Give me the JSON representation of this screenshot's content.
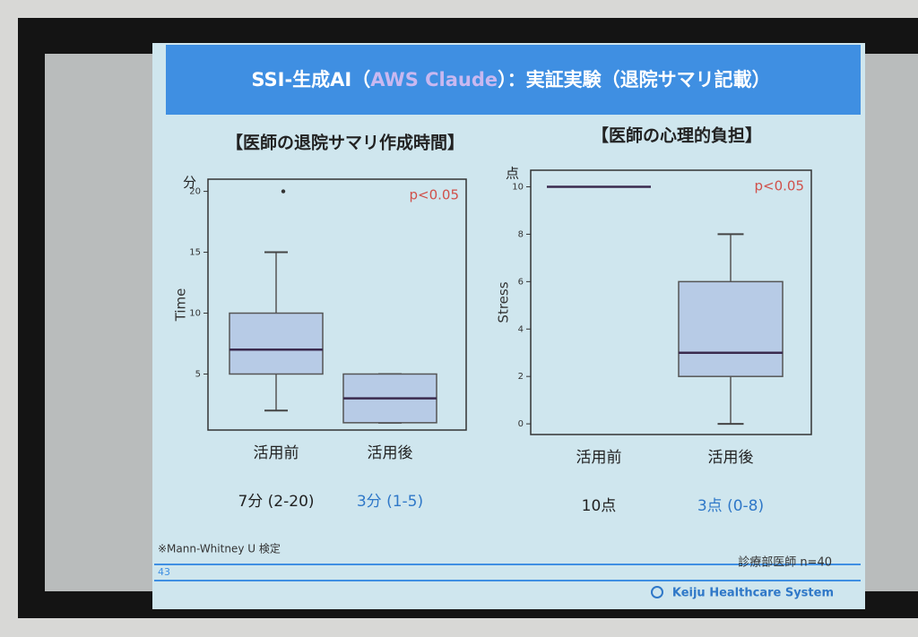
{
  "slide": {
    "title": [
      {
        "text": "SSI-生成AI（",
        "color": "#ffffff"
      },
      {
        "text": "AWS Claude",
        "color": "#c9b8f0"
      },
      {
        "text": "）：実証実験（退院サマリ記載）",
        "color": "#ffffff"
      }
    ],
    "footnote": "※Mann-Whitney U 検定",
    "sample": "診療部医師 n=40",
    "page": "43",
    "brand": "Keiju Healthcare System"
  },
  "chart_data": [
    {
      "type": "box",
      "title": "【医師の退院サマリ作成時間】",
      "unit": "分",
      "ylabel": "Time",
      "annotation": "p<0.05",
      "categories": [
        "活用前",
        "活用後"
      ],
      "boxes": [
        {
          "whisker_low": 2,
          "q1": 5,
          "median": 7,
          "q3": 10,
          "whisker_high": 15,
          "outliers": [
            20
          ]
        },
        {
          "whisker_low": 1,
          "q1": 1,
          "median": 3,
          "q3": 5,
          "whisker_high": 5,
          "outliers": []
        }
      ],
      "summaries": [
        {
          "text": "7分 (2-20)",
          "color": "#222222"
        },
        {
          "text": "3分 (1-5)",
          "color": "#2f78c8"
        }
      ],
      "color": "#b7cbe6",
      "median_color": "#3a2a4e",
      "ylim": [
        0.4,
        21
      ],
      "yticks": [
        5,
        10,
        15,
        20
      ]
    },
    {
      "type": "box",
      "title": "【医師の心理的負担】",
      "unit": "点",
      "ylabel": "Stress",
      "annotation": "p<0.05",
      "categories": [
        "活用前",
        "活用後"
      ],
      "boxes": [
        {
          "whisker_low": 10,
          "q1": 10,
          "median": 10,
          "q3": 10,
          "whisker_high": 10,
          "outliers": []
        },
        {
          "whisker_low": 0,
          "q1": 2,
          "median": 3,
          "q3": 6,
          "whisker_high": 8,
          "outliers": []
        }
      ],
      "summaries": [
        {
          "text": "10点",
          "color": "#222222"
        },
        {
          "text": "3点 (0-8)",
          "color": "#2f78c8"
        }
      ],
      "color": "#b7cbe6",
      "median_color": "#3a2a4e",
      "ylim": [
        -0.45,
        10.7
      ],
      "yticks": [
        0,
        2,
        4,
        6,
        8,
        10
      ]
    }
  ]
}
